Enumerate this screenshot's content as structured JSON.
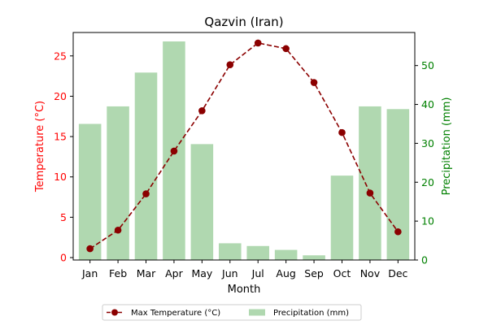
{
  "chart_data": {
    "type": "bar",
    "title": "Qazvin (Iran)",
    "xlabel": "Month",
    "ylabel_left": "Temperature (°C)",
    "ylabel_right": "Precipitation (mm)",
    "categories": [
      "Jan",
      "Feb",
      "Mar",
      "Apr",
      "May",
      "Jun",
      "Jul",
      "Aug",
      "Sep",
      "Oct",
      "Nov",
      "Dec"
    ],
    "series": [
      {
        "name": "Max Temperature (°C)",
        "type": "line",
        "axis": "left",
        "color": "#8b0000",
        "line_style": "dashed",
        "marker": "circle",
        "values": [
          1.1,
          3.4,
          7.9,
          13.2,
          18.2,
          23.9,
          26.6,
          25.9,
          21.7,
          15.5,
          8.0,
          3.2
        ]
      },
      {
        "name": "Precipitation (mm)",
        "type": "bar",
        "axis": "right",
        "color": "#b0d8b0",
        "values": [
          35.0,
          39.5,
          48.2,
          56.2,
          29.8,
          4.3,
          3.6,
          2.6,
          1.2,
          21.7,
          39.5,
          38.8
        ]
      }
    ],
    "y_left": {
      "range": [
        -0.3,
        27.9
      ],
      "ticks": [
        0,
        5,
        10,
        15,
        20,
        25
      ],
      "color": "#ff0000"
    },
    "y_right": {
      "range": [
        0,
        58.5
      ],
      "ticks": [
        0,
        10,
        20,
        30,
        40,
        50
      ],
      "color": "#008000"
    },
    "grid": false,
    "legend_position": "bottom-center"
  }
}
